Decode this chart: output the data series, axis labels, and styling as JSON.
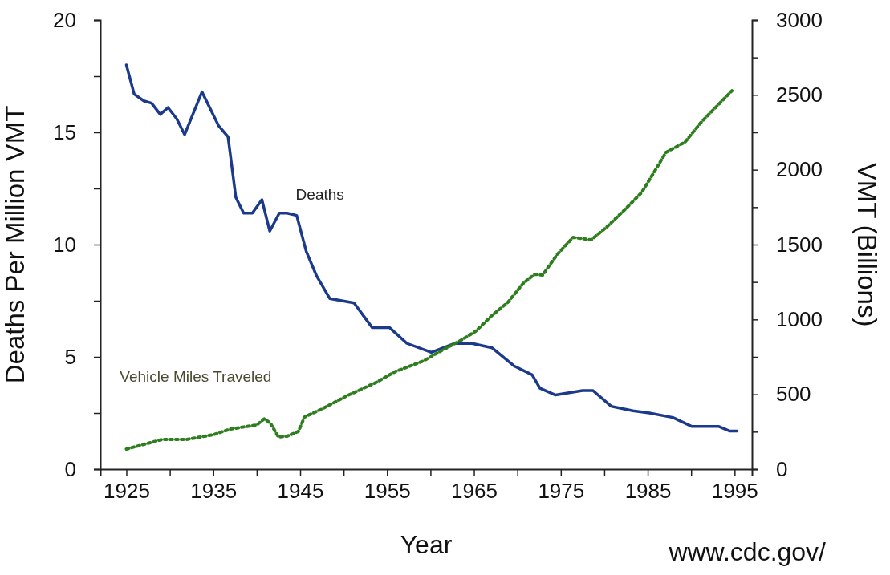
{
  "chart_data": {
    "type": "line",
    "xlabel": "Year",
    "ylabel": "Deaths Per Million VMT",
    "y2label": "VMT (Billions)",
    "xlim": [
      1922,
      1997
    ],
    "xticks": [
      1925,
      {
        "value": 1930,
        "label": null
      },
      1935,
      {
        "value": 1940,
        "label": null
      },
      1945,
      {
        "value": 1950,
        "label": null
      },
      1955,
      {
        "value": 1960,
        "label": null
      },
      1965,
      {
        "value": 1970,
        "label": null
      },
      1975,
      {
        "value": 1980,
        "label": null
      },
      1985,
      {
        "value": 1990,
        "label": null
      },
      1995
    ],
    "ylim": [
      0,
      20
    ],
    "yticks": [
      0,
      {
        "value": 2.5,
        "label": null
      },
      5,
      {
        "value": 7.5,
        "label": null
      },
      10,
      {
        "value": 12.5,
        "label": null
      },
      15,
      {
        "value": 17.5,
        "label": null
      },
      20
    ],
    "y2lim": [
      0,
      3000
    ],
    "y2ticks": [
      0,
      {
        "value": 250,
        "label": null
      },
      500,
      {
        "value": 750,
        "label": null
      },
      1000,
      {
        "value": 1250,
        "label": null
      },
      1500,
      {
        "value": 1750,
        "label": null
      },
      2000,
      {
        "value": 2250,
        "label": null
      },
      2500,
      {
        "value": 2750,
        "label": null
      },
      3000
    ],
    "grid": false,
    "series": [
      {
        "name": "Deaths",
        "color": "#1c3a8c",
        "line_style": "solid",
        "x": [
          1925,
          1925.9,
          1927,
          1927.9,
          1928.9,
          1929.8,
          1930.8,
          1931.7,
          1933.7,
          1935.6,
          1936.7,
          1937.6,
          1938.5,
          1939.5,
          1940.6,
          1941.5,
          1942.6,
          1943.5,
          1944.6,
          1945.7,
          1946.9,
          1948.4,
          1951.2,
          1953.3,
          1955.3,
          1957.3,
          1960.1,
          1962.8,
          1964.8,
          1967.1,
          1969.6,
          1971.7,
          1972.6,
          1974.4,
          1977.5,
          1978.7,
          1980.8,
          1983.3,
          1985.2,
          1987.9,
          1990.1,
          1993.2,
          1994.4,
          1995.3
        ],
        "values": [
          18.0,
          16.7,
          16.4,
          16.3,
          15.8,
          16.1,
          15.6,
          14.9,
          16.8,
          15.3,
          14.8,
          12.1,
          11.4,
          11.4,
          12.0,
          10.6,
          11.4,
          11.4,
          11.3,
          9.7,
          8.6,
          7.6,
          7.4,
          6.3,
          6.3,
          5.6,
          5.2,
          5.6,
          5.6,
          5.4,
          4.6,
          4.2,
          3.6,
          3.3,
          3.5,
          3.5,
          2.8,
          2.6,
          2.5,
          2.3,
          1.9,
          1.9,
          1.7,
          1.7
        ]
      },
      {
        "name": "Vehicle Miles Traveled",
        "color": "#2e7d1e",
        "line_style": "dotted",
        "axis": "y2",
        "x": [
          1925,
          1927,
          1929.1,
          1931.9,
          1935,
          1937,
          1940,
          1940.9,
          1941.6,
          1942.5,
          1943.5,
          1944.8,
          1945.5,
          1947.5,
          1950.5,
          1953.7,
          1956,
          1959.2,
          1961.3,
          1963.4,
          1965.2,
          1967.1,
          1968.9,
          1970.7,
          1972,
          1972.9,
          1974.6,
          1976.4,
          1978.5,
          1980.3,
          1982.5,
          1984.3,
          1985.6,
          1987.1,
          1989.3,
          1991.1,
          1992.9,
          1994.7
        ],
        "values": [
          134,
          165,
          198,
          198,
          230,
          268,
          295,
          337,
          305,
          214,
          220,
          252,
          348,
          402,
          493,
          578,
          653,
          723,
          793,
          857,
          921,
          1028,
          1114,
          1243,
          1302,
          1296,
          1435,
          1548,
          1532,
          1618,
          1741,
          1848,
          1971,
          2116,
          2185,
          2314,
          2421,
          2528
        ]
      }
    ],
    "annotations": [
      "www.cdc.gov/"
    ]
  }
}
